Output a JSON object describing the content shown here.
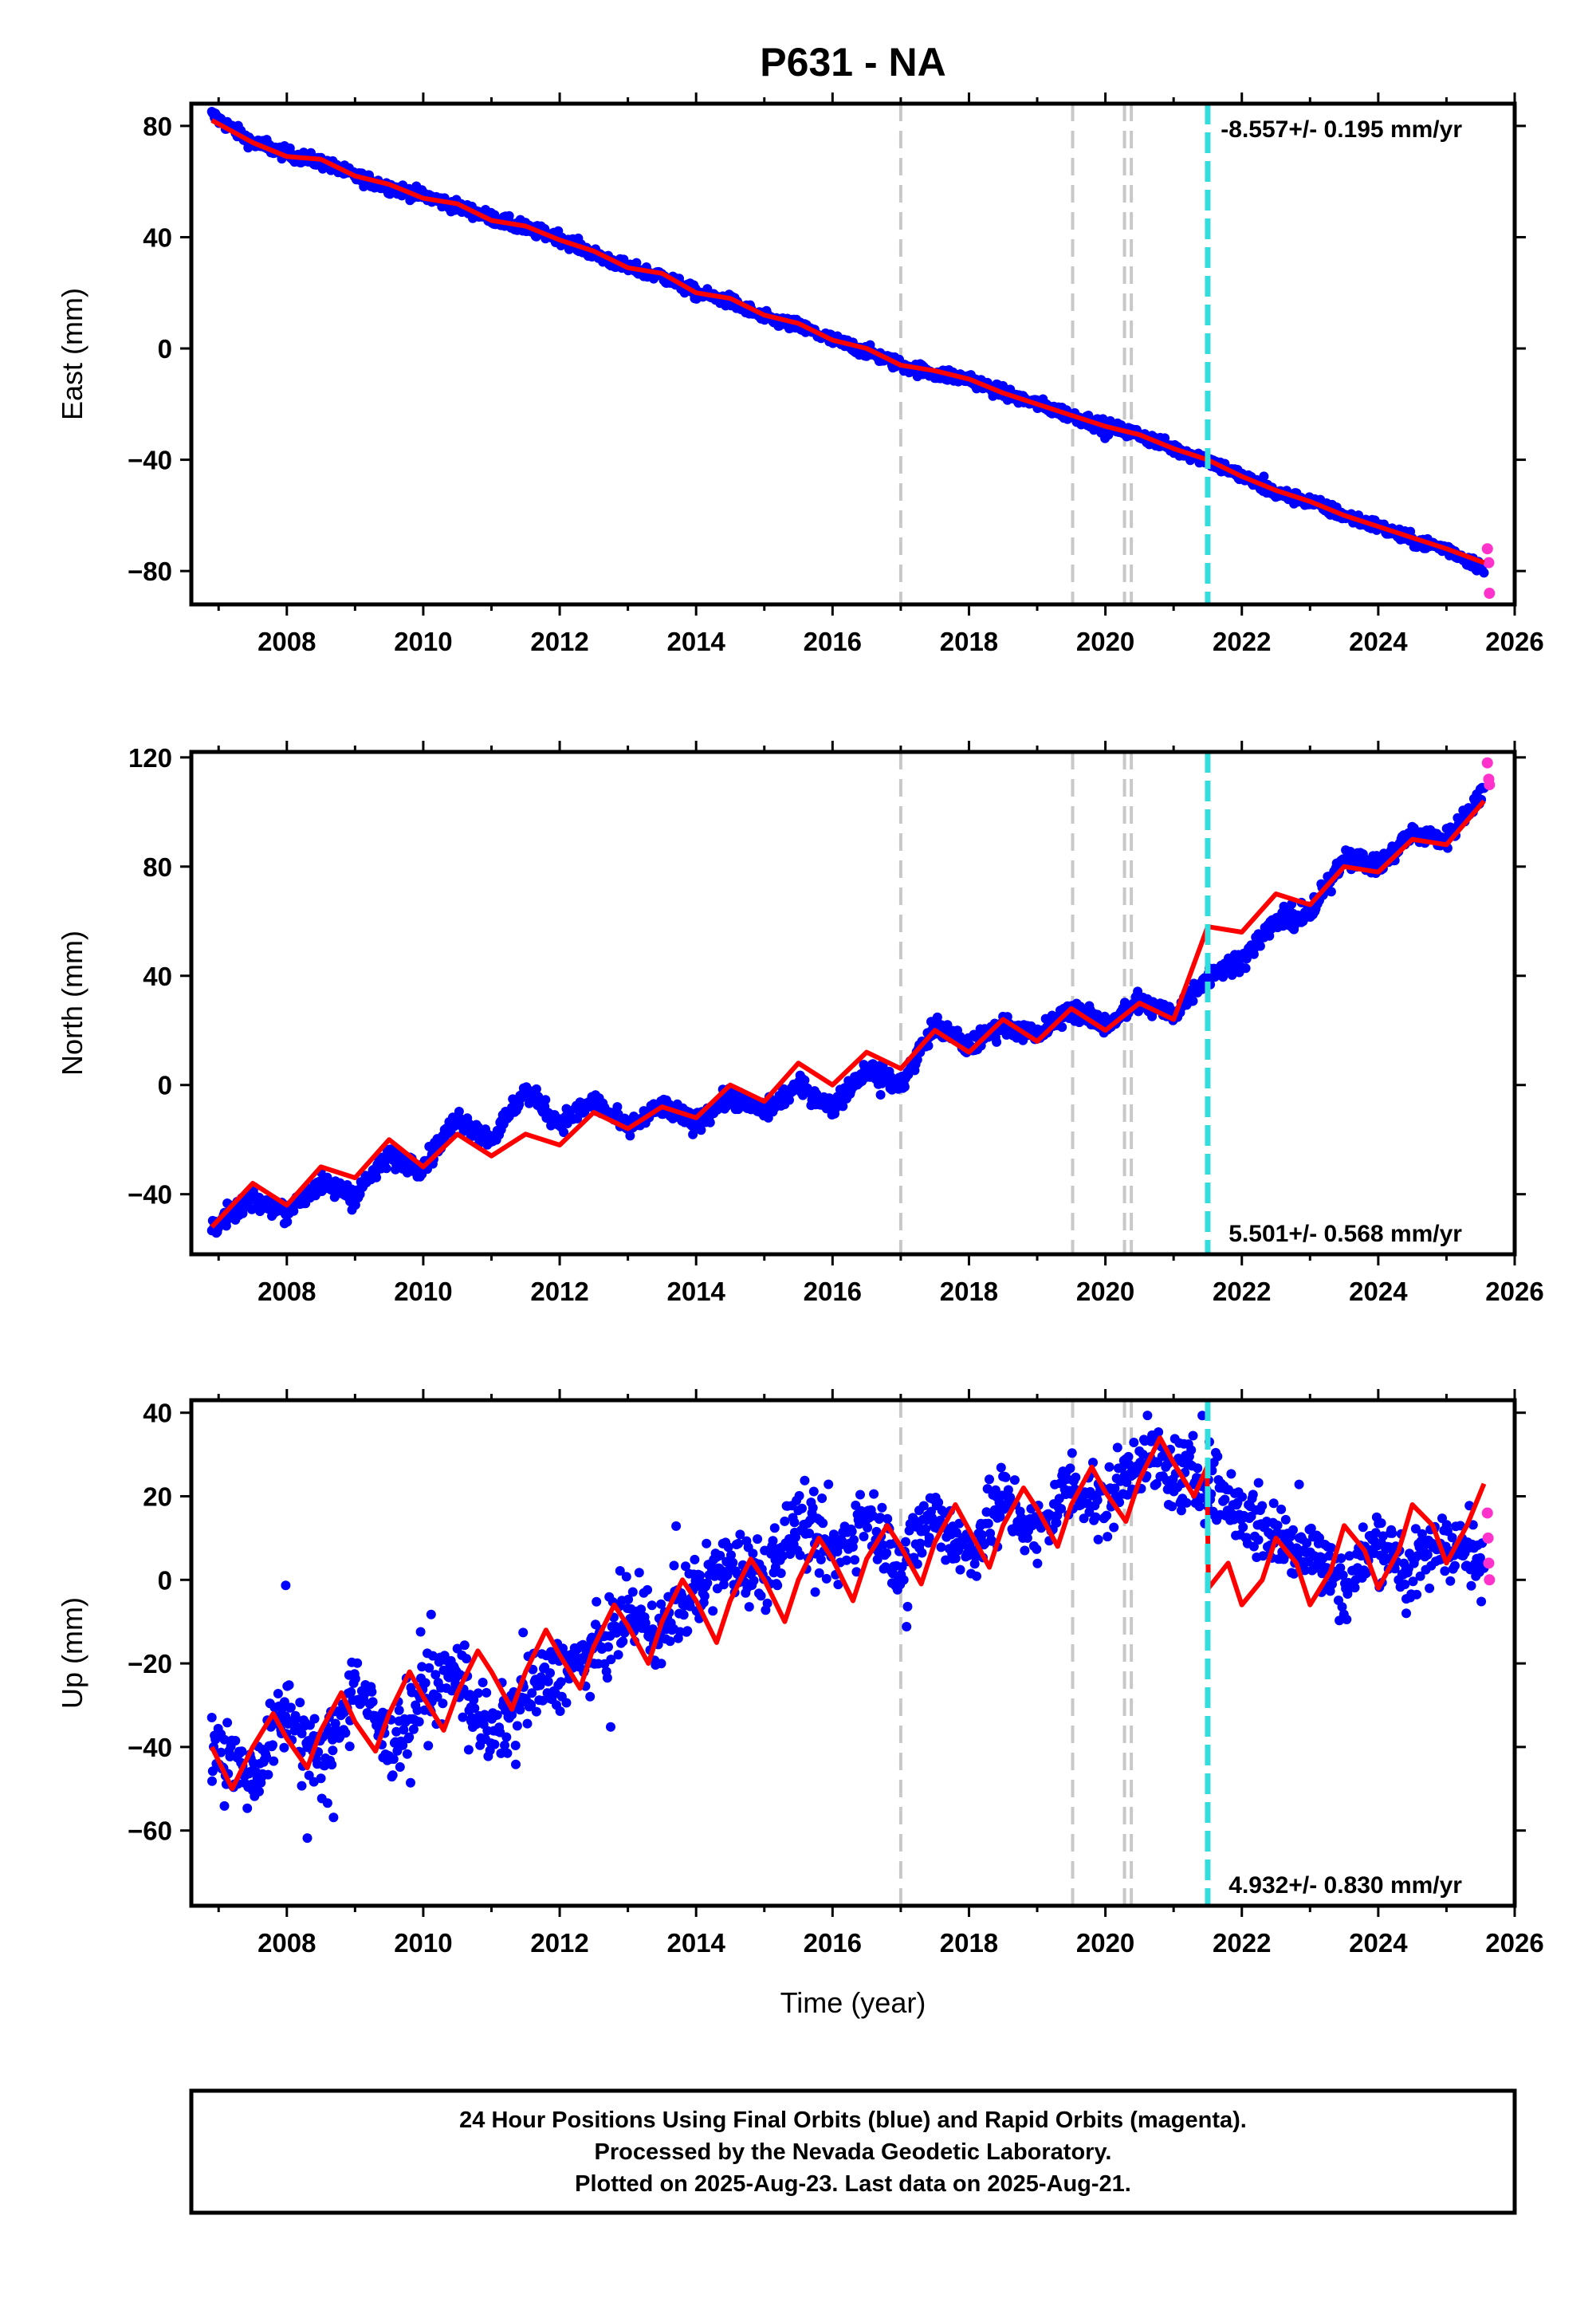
{
  "title": "P631 - NA",
  "xlabel": "Time (year)",
  "footer": [
    "24 Hour Positions Using Final Orbits (blue) and Rapid Orbits (magenta).",
    "Processed by the Nevada Geodetic Laboratory.",
    "Plotted on 2025-Aug-23. Last data on 2025-Aug-21."
  ],
  "colors": {
    "final_orbits": "#0000ff",
    "rapid_orbits": "#ff33cc",
    "model": "#ff0000",
    "event_line": "#c8c8c8",
    "antenna_change": "#33dddd"
  },
  "chart_data": [
    {
      "type": "scatter",
      "ylabel": "East (mm)",
      "xlim": [
        2006.6,
        2026.0
      ],
      "ylim": [
        -92,
        88
      ],
      "yticks": [
        80,
        40,
        0,
        -40,
        -80
      ],
      "xticks": [
        2008,
        2010,
        2012,
        2014,
        2016,
        2018,
        2020,
        2022,
        2024,
        2026
      ],
      "rate_label": "-8.557+/- 0.195 mm/yr",
      "rate_position": "top-right",
      "grid": false,
      "vertical_lines": [
        {
          "x": 2017.0,
          "kind": "event"
        },
        {
          "x": 2019.52,
          "kind": "event"
        },
        {
          "x": 2020.28,
          "kind": "event"
        },
        {
          "x": 2020.38,
          "kind": "event"
        },
        {
          "x": 2021.5,
          "kind": "antenna"
        }
      ],
      "series": [
        {
          "kind": "final",
          "x": [
            2006.9,
            2007.5,
            2008.0,
            2008.5,
            2009.0,
            2009.5,
            2010.0,
            2010.5,
            2011.0,
            2011.5,
            2012.0,
            2012.5,
            2013.0,
            2013.5,
            2014.0,
            2014.5,
            2015.0,
            2015.5,
            2016.0,
            2016.5,
            2017.0,
            2017.5,
            2018.0,
            2018.5,
            2019.0,
            2019.5,
            2020.0,
            2020.5,
            2021.0,
            2021.5,
            2022.0,
            2022.5,
            2023.0,
            2023.5,
            2024.0,
            2024.5,
            2025.0,
            2025.55
          ],
          "y": [
            84,
            74,
            70,
            67,
            62,
            58,
            55,
            51,
            47,
            43,
            40,
            34,
            29,
            26,
            20,
            17,
            11,
            8,
            3,
            -1,
            -6,
            -9,
            -11,
            -16,
            -20,
            -24,
            -28,
            -31,
            -36,
            -40,
            -46,
            -52,
            -55,
            -60,
            -64,
            -69,
            -72,
            -79
          ]
        },
        {
          "kind": "rapid",
          "x": [
            2025.6,
            2025.62,
            2025.63
          ],
          "y": [
            -72,
            -77,
            -88
          ]
        },
        {
          "kind": "model",
          "x": [
            2006.9,
            2007.5,
            2008.0,
            2008.5,
            2009.0,
            2009.5,
            2010.0,
            2010.5,
            2011.0,
            2011.5,
            2012.0,
            2012.5,
            2013.0,
            2013.5,
            2014.0,
            2014.5,
            2015.0,
            2015.5,
            2016.0,
            2016.5,
            2017.0,
            2017.5,
            2018.0,
            2018.5,
            2019.0,
            2019.5,
            2020.0,
            2020.5,
            2021.0,
            2021.5,
            2022.0,
            2022.5,
            2023.0,
            2023.5,
            2024.0,
            2024.5,
            2025.0,
            2025.55
          ],
          "y": [
            82,
            74,
            69,
            68,
            62,
            59,
            54,
            52,
            46,
            44,
            39,
            35,
            29,
            27,
            20,
            18,
            12,
            9,
            3,
            0,
            -6,
            -8,
            -11,
            -16,
            -20,
            -24,
            -28,
            -31,
            -36,
            -40,
            -46,
            -51,
            -55,
            -60,
            -64,
            -68,
            -72,
            -77
          ]
        }
      ]
    },
    {
      "type": "scatter",
      "ylabel": "North (mm)",
      "xlim": [
        2006.6,
        2026.0
      ],
      "ylim": [
        -62,
        122
      ],
      "yticks": [
        120,
        80,
        40,
        0,
        -40
      ],
      "xticks": [
        2008,
        2010,
        2012,
        2014,
        2016,
        2018,
        2020,
        2022,
        2024,
        2026
      ],
      "rate_label": "5.501+/- 0.568 mm/yr",
      "rate_position": "bottom-right",
      "grid": false,
      "vertical_lines": [
        {
          "x": 2017.0,
          "kind": "event"
        },
        {
          "x": 2019.52,
          "kind": "event"
        },
        {
          "x": 2020.28,
          "kind": "event"
        },
        {
          "x": 2020.38,
          "kind": "event"
        },
        {
          "x": 2021.5,
          "kind": "antenna"
        }
      ],
      "series": [
        {
          "kind": "final",
          "x": [
            2006.9,
            2007.5,
            2008.0,
            2008.5,
            2009.0,
            2009.5,
            2010.0,
            2010.5,
            2011.0,
            2011.5,
            2012.0,
            2012.5,
            2013.0,
            2013.5,
            2014.0,
            2014.5,
            2015.0,
            2015.5,
            2016.0,
            2016.5,
            2017.0,
            2017.5,
            2018.0,
            2018.5,
            2019.0,
            2019.5,
            2020.0,
            2020.5,
            2021.0,
            2021.5,
            2022.0,
            2022.5,
            2023.0,
            2023.5,
            2024.0,
            2024.5,
            2025.0,
            2025.55
          ],
          "y": [
            -52,
            -42,
            -46,
            -36,
            -40,
            -26,
            -30,
            -12,
            -20,
            -2,
            -14,
            -6,
            -16,
            -8,
            -14,
            -4,
            -10,
            0,
            -8,
            6,
            0,
            22,
            14,
            22,
            18,
            28,
            22,
            30,
            26,
            40,
            46,
            60,
            62,
            84,
            80,
            92,
            90,
            108
          ]
        },
        {
          "kind": "rapid",
          "x": [
            2025.6,
            2025.62,
            2025.63
          ],
          "y": [
            118,
            112,
            110
          ]
        },
        {
          "kind": "model",
          "x": [
            2006.9,
            2007.5,
            2008.0,
            2008.5,
            2009.0,
            2009.5,
            2010.0,
            2010.5,
            2011.0,
            2011.5,
            2012.0,
            2012.5,
            2013.0,
            2013.5,
            2014.0,
            2014.5,
            2015.0,
            2015.5,
            2016.0,
            2016.5,
            2017.0,
            2017.5,
            2018.0,
            2018.5,
            2019.0,
            2019.5,
            2020.0,
            2020.5,
            2021.0,
            2021.5,
            2022.0,
            2022.5,
            2023.0,
            2023.5,
            2024.0,
            2024.5,
            2025.0,
            2025.55
          ],
          "y": [
            -52,
            -36,
            -44,
            -30,
            -34,
            -20,
            -30,
            -18,
            -26,
            -18,
            -22,
            -10,
            -16,
            -8,
            -12,
            0,
            -6,
            8,
            0,
            12,
            6,
            20,
            12,
            24,
            16,
            28,
            20,
            30,
            24,
            58,
            56,
            70,
            66,
            80,
            78,
            90,
            88,
            104
          ]
        }
      ]
    },
    {
      "type": "scatter",
      "ylabel": "Up (mm)",
      "xlim": [
        2006.6,
        2026.0
      ],
      "ylim": [
        -78,
        43
      ],
      "yticks": [
        40,
        20,
        0,
        -20,
        -40,
        -60
      ],
      "xticks": [
        2008,
        2010,
        2012,
        2014,
        2016,
        2018,
        2020,
        2022,
        2024,
        2026
      ],
      "rate_label": "4.932+/- 0.830 mm/yr",
      "rate_position": "bottom-right",
      "grid": false,
      "vertical_lines": [
        {
          "x": 2017.0,
          "kind": "event"
        },
        {
          "x": 2019.52,
          "kind": "event"
        },
        {
          "x": 2020.28,
          "kind": "event"
        },
        {
          "x": 2020.38,
          "kind": "event"
        },
        {
          "x": 2021.5,
          "kind": "antenna"
        }
      ],
      "series": [
        {
          "kind": "final",
          "x": [
            2006.9,
            2007.5,
            2008.0,
            2008.5,
            2009.0,
            2009.5,
            2010.0,
            2010.5,
            2011.0,
            2011.5,
            2012.0,
            2012.5,
            2013.0,
            2013.5,
            2014.0,
            2014.5,
            2015.0,
            2015.5,
            2016.0,
            2016.5,
            2017.0,
            2017.5,
            2018.0,
            2018.5,
            2019.0,
            2019.5,
            2020.0,
            2020.5,
            2021.0,
            2021.5,
            2022.0,
            2022.5,
            2023.0,
            2023.5,
            2024.0,
            2024.5,
            2025.0,
            2025.55
          ],
          "y": [
            -38,
            -48,
            -30,
            -44,
            -24,
            -40,
            -28,
            -22,
            -38,
            -28,
            -22,
            -18,
            -8,
            -12,
            -2,
            4,
            2,
            14,
            6,
            16,
            4,
            16,
            6,
            20,
            10,
            24,
            18,
            30,
            26,
            24,
            16,
            10,
            8,
            -2,
            10,
            2,
            10,
            2
          ]
        },
        {
          "kind": "rapid",
          "x": [
            2025.6,
            2025.61,
            2025.62,
            2025.63
          ],
          "y": [
            16,
            10,
            4,
            0
          ]
        },
        {
          "kind": "model",
          "x": [
            2006.9,
            2007.2,
            2007.5,
            2007.8,
            2008.0,
            2008.3,
            2008.5,
            2008.8,
            2009.0,
            2009.3,
            2009.5,
            2009.8,
            2010.0,
            2010.3,
            2010.5,
            2010.8,
            2011.0,
            2011.3,
            2011.5,
            2011.8,
            2012.0,
            2012.3,
            2012.5,
            2012.8,
            2013.0,
            2013.3,
            2013.5,
            2013.8,
            2014.0,
            2014.3,
            2014.5,
            2014.8,
            2015.0,
            2015.3,
            2015.5,
            2015.8,
            2016.0,
            2016.3,
            2016.5,
            2016.8,
            2017.0,
            2017.3,
            2017.5,
            2017.8,
            2018.0,
            2018.3,
            2018.5,
            2018.8,
            2019.0,
            2019.3,
            2019.5,
            2019.8,
            2020.0,
            2020.3,
            2020.5,
            2020.8,
            2021.0,
            2021.3,
            2021.49,
            2021.51,
            2021.8,
            2022.0,
            2022.3,
            2022.5,
            2022.8,
            2023.0,
            2023.3,
            2023.5,
            2023.8,
            2024.0,
            2024.3,
            2024.5,
            2024.8,
            2025.0,
            2025.3,
            2025.55
          ],
          "y": [
            -40,
            -50,
            -40,
            -32,
            -38,
            -45,
            -36,
            -27,
            -34,
            -41,
            -32,
            -22,
            -28,
            -36,
            -27,
            -17,
            -22,
            -31,
            -22,
            -12,
            -18,
            -26,
            -16,
            -6,
            -11,
            -20,
            -10,
            0,
            -5,
            -15,
            -5,
            5,
            0,
            -10,
            0,
            10,
            5,
            -5,
            5,
            13,
            8,
            -1,
            9,
            18,
            12,
            3,
            13,
            22,
            17,
            8,
            18,
            27,
            21,
            14,
            24,
            34,
            28,
            20,
            27,
            -2,
            4,
            -6,
            0,
            10,
            4,
            -6,
            2,
            13,
            7,
            -2,
            7,
            18,
            13,
            4,
            13,
            23
          ]
        }
      ]
    }
  ]
}
